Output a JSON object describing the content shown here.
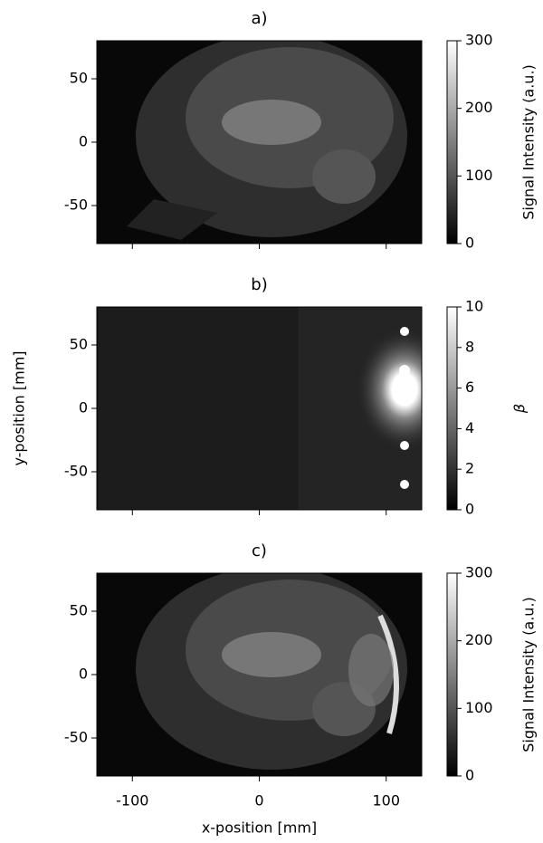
{
  "chart_data": [
    {
      "type": "image",
      "title": "a)",
      "xlim": [
        -128,
        128
      ],
      "ylim": [
        -80,
        80
      ],
      "xticks": [
        -100,
        0,
        100
      ],
      "yticks": [
        -50,
        0,
        50
      ],
      "colormap": "gray",
      "colorbar": {
        "label": "Signal Intensity (a.u.)",
        "lim": [
          0,
          300
        ],
        "ticks": [
          0,
          100,
          200,
          300
        ]
      }
    },
    {
      "type": "image",
      "title": "b)",
      "ylabel": "y-position [mm]",
      "xlim": [
        -128,
        128
      ],
      "ylim": [
        -80,
        80
      ],
      "xticks": [
        -100,
        0,
        100
      ],
      "yticks": [
        -50,
        0,
        50
      ],
      "colormap": "gray",
      "colorbar": {
        "label": "β",
        "lim": [
          0,
          10
        ],
        "ticks": [
          0,
          2,
          4,
          6,
          8,
          10
        ]
      }
    },
    {
      "type": "image",
      "title": "c)",
      "xlabel": "x-position [mm]",
      "xlim": [
        -128,
        128
      ],
      "ylim": [
        -80,
        80
      ],
      "xticks": [
        -100,
        0,
        100
      ],
      "yticks": [
        -50,
        0,
        50
      ],
      "colormap": "gray",
      "colorbar": {
        "label": "Signal Intensity (a.u.)",
        "lim": [
          0,
          300
        ],
        "ticks": [
          0,
          100,
          200,
          300
        ]
      }
    }
  ]
}
